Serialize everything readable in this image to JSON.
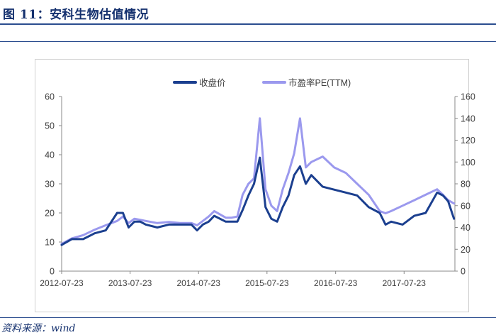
{
  "header": {
    "title": "图 11：安科生物估值情况"
  },
  "footer": {
    "source": "资料来源：wind"
  },
  "colors": {
    "price": "#1b3f8f",
    "pe": "#9b99ee",
    "axis": "#888888",
    "text": "#404040"
  },
  "chart_data": {
    "type": "line",
    "title": "",
    "xlabel": "",
    "ylabel": "",
    "x_tick_labels": [
      "2012-07-23",
      "2013-07-23",
      "2014-07-23",
      "2015-07-23",
      "2016-07-23",
      "2017-07-23"
    ],
    "left_axis": {
      "ylim": [
        0,
        60
      ],
      "ticks": [
        0,
        10,
        20,
        30,
        40,
        50,
        60
      ]
    },
    "right_axis": {
      "ylim": [
        0,
        160
      ],
      "ticks": [
        0,
        20,
        40,
        60,
        80,
        100,
        120,
        140,
        160
      ]
    },
    "legend": {
      "placement": "top-center"
    },
    "grid": false,
    "series": [
      {
        "name": "收盘价",
        "axis": "left",
        "x": [
          "2012-07-23",
          "2012-09",
          "2012-11",
          "2013-01",
          "2013-03",
          "2013-05",
          "2013-06",
          "2013-07",
          "2013-08",
          "2013-09",
          "2013-10",
          "2013-12",
          "2014-02",
          "2014-04",
          "2014-06",
          "2014-07",
          "2014-08",
          "2014-09",
          "2014-10",
          "2014-12",
          "2015-01",
          "2015-02",
          "2015-03",
          "2015-04",
          "2015-05",
          "2015-06",
          "2015-07",
          "2015-08",
          "2015-09",
          "2015-10",
          "2015-11",
          "2015-12",
          "2016-01",
          "2016-02",
          "2016-03",
          "2016-05",
          "2016-07",
          "2016-09",
          "2016-11",
          "2017-01",
          "2017-03",
          "2017-04",
          "2017-05",
          "2017-07",
          "2017-09",
          "2017-11",
          "2018-01",
          "2018-02",
          "2018-03",
          "2018-04"
        ],
        "values": [
          9,
          11,
          11,
          13,
          14,
          20,
          20,
          15,
          17,
          17,
          16,
          15,
          16,
          16,
          16,
          14,
          16,
          17,
          19,
          17,
          17,
          17,
          21,
          26,
          30,
          39,
          22,
          18,
          17,
          22,
          26,
          33,
          36,
          30,
          33,
          29,
          28,
          27,
          26,
          22,
          20,
          16,
          17,
          16,
          19,
          20,
          27,
          26,
          24,
          18
        ]
      },
      {
        "name": "市盈率PE(TTM)",
        "axis": "right",
        "x": [
          "2012-07-23",
          "2012-09",
          "2012-11",
          "2013-01",
          "2013-03",
          "2013-05",
          "2013-06",
          "2013-07",
          "2013-08",
          "2013-09",
          "2013-10",
          "2013-12",
          "2014-02",
          "2014-04",
          "2014-06",
          "2014-07",
          "2014-08",
          "2014-09",
          "2014-10",
          "2014-12",
          "2015-01",
          "2015-02",
          "2015-03",
          "2015-04",
          "2015-05",
          "2015-06",
          "2015-07",
          "2015-08",
          "2015-09",
          "2015-10",
          "2015-11",
          "2015-12",
          "2016-01",
          "2016-02",
          "2016-03",
          "2016-05",
          "2016-07",
          "2016-09",
          "2016-11",
          "2017-01",
          "2017-03",
          "2017-04",
          "2017-05",
          "2017-07",
          "2017-09",
          "2017-11",
          "2018-01",
          "2018-02",
          "2018-03",
          "2018-04"
        ],
        "values": [
          25,
          30,
          33,
          38,
          42,
          46,
          50,
          44,
          48,
          47,
          46,
          44,
          45,
          44,
          44,
          42,
          46,
          50,
          55,
          49,
          49,
          50,
          70,
          80,
          85,
          140,
          75,
          60,
          55,
          75,
          90,
          108,
          140,
          95,
          100,
          105,
          95,
          90,
          80,
          70,
          55,
          53,
          55,
          60,
          65,
          70,
          75,
          70,
          65,
          62
        ]
      }
    ]
  }
}
